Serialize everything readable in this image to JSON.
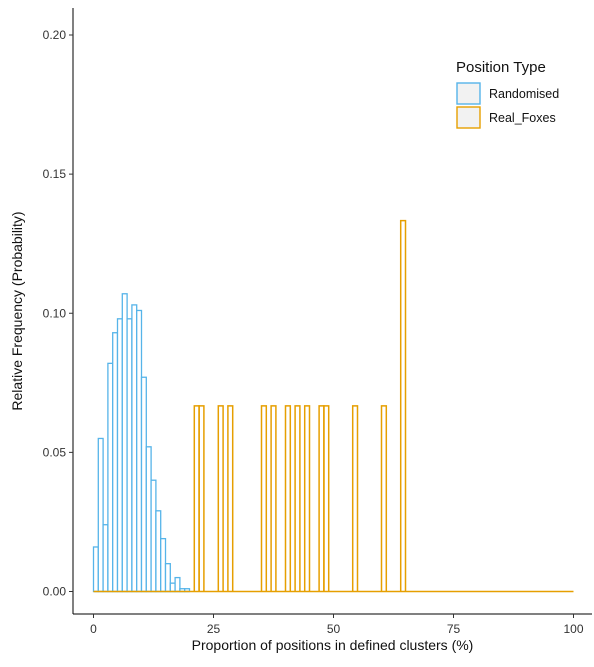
{
  "chart_data": {
    "type": "bar",
    "subtype": "histogram",
    "xlabel": "Proportion of positions in defined clusters (%)",
    "ylabel": "Relative Frequency (Probability)",
    "xlim": [
      -4,
      104
    ],
    "ylim": [
      0,
      0.21
    ],
    "x_ticks": [
      0,
      25,
      50,
      75,
      100
    ],
    "x_tick_labels": [
      "0",
      "25",
      "50",
      "75",
      "100"
    ],
    "y_ticks": [
      0,
      0.05,
      0.1,
      0.15,
      0.2
    ],
    "y_tick_labels": [
      "0.00",
      "0.05",
      "0.10",
      "0.15",
      "0.20"
    ],
    "bin_width": 1,
    "grid": false,
    "legend": {
      "title": "Position Type",
      "placement": "top-right",
      "entries": [
        "Randomised",
        "Real_Foxes"
      ]
    },
    "series": [
      {
        "name": "Randomised",
        "color": "#56b4e9",
        "x_start": 0,
        "x_end": 19,
        "values": [
          0.016,
          0.055,
          0.024,
          0.082,
          0.093,
          0.098,
          0.107,
          0.098,
          0.103,
          0.101,
          0.077,
          0.052,
          0.04,
          0.029,
          0.019,
          0.01,
          0.003,
          0.005,
          0.001,
          0.001
        ]
      },
      {
        "name": "Real_Foxes",
        "color": "#e69f00",
        "x_start": 0,
        "x_end": 100,
        "bars": [
          {
            "x": 21,
            "value": 0.0667
          },
          {
            "x": 22,
            "value": 0.0667
          },
          {
            "x": 26,
            "value": 0.0667
          },
          {
            "x": 28,
            "value": 0.0667
          },
          {
            "x": 35,
            "value": 0.0667
          },
          {
            "x": 37,
            "value": 0.0667
          },
          {
            "x": 40,
            "value": 0.0667
          },
          {
            "x": 42,
            "value": 0.0667
          },
          {
            "x": 44,
            "value": 0.0667
          },
          {
            "x": 47,
            "value": 0.0667
          },
          {
            "x": 48,
            "value": 0.0667
          },
          {
            "x": 54,
            "value": 0.0667
          },
          {
            "x": 60,
            "value": 0.0667
          },
          {
            "x": 64,
            "value": 0.1333
          }
        ]
      }
    ]
  }
}
